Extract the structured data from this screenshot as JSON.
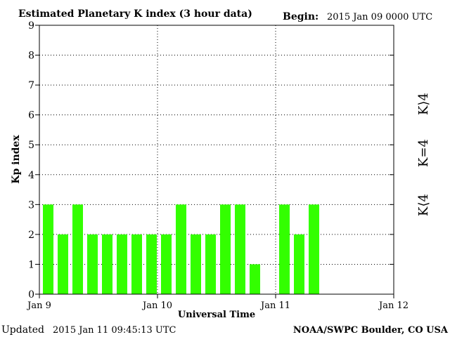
{
  "header": {
    "title": "Estimated Planetary K index (3 hour data)",
    "begin_label": "Begin:",
    "begin_value": "2015 Jan 09 0000 UTC"
  },
  "footer": {
    "updated_label": "Updated",
    "updated_value": "2015 Jan 11 09:45:13 UTC",
    "source": "NOAA/SWPC Boulder, CO USA"
  },
  "legend": {
    "high": "K⟩4",
    "equal": "K=4",
    "low": "K⟨4"
  },
  "colors": {
    "low": "#33ff00",
    "equal": "#ffcc00",
    "high": "#ff2200"
  },
  "chart_data": {
    "type": "bar",
    "xlabel": "Universal Time",
    "ylabel": "Kp index",
    "ylim": [
      0,
      9
    ],
    "yticks": [
      0,
      1,
      2,
      3,
      4,
      5,
      6,
      7,
      8,
      9
    ],
    "xlim": [
      0,
      72
    ],
    "xticks": [
      {
        "hour": 0,
        "label": "Jan 9"
      },
      {
        "hour": 24,
        "label": "Jan 10"
      },
      {
        "hour": 48,
        "label": "Jan 11"
      },
      {
        "hour": 72,
        "label": "Jan 12"
      }
    ],
    "grid": true,
    "bar_period_hours": 3,
    "values": [
      3,
      2,
      3,
      2,
      2,
      2,
      2,
      2,
      2,
      3,
      2,
      2,
      3,
      3,
      1,
      null,
      3,
      2,
      3
    ]
  }
}
